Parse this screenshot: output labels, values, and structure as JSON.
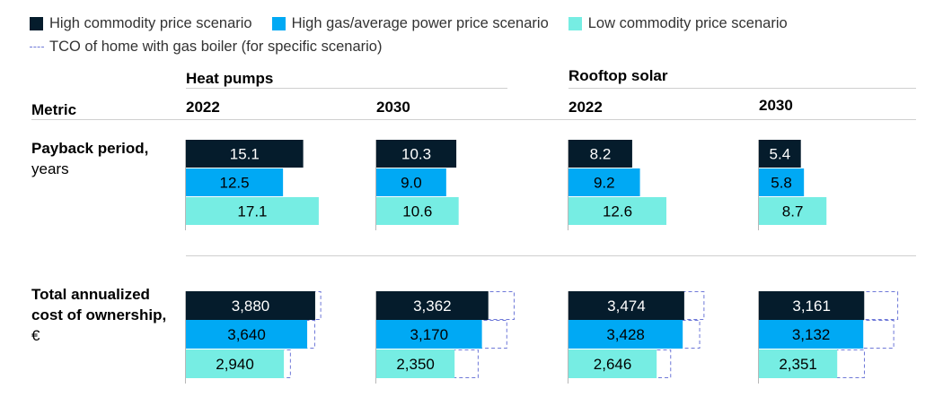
{
  "legend": {
    "high_commodity": "High commodity price scenario",
    "high_gas": "High gas/average power price scenario",
    "low_commodity": "Low commodity price scenario",
    "tco_gas": "TCO of home with gas boiler (for specific scenario)"
  },
  "headers": {
    "metric": "Metric",
    "heat_pumps": "Heat pumps",
    "rooftop_solar": "Rooftop solar",
    "year_2022": "2022",
    "year_2030": "2030"
  },
  "metrics": {
    "payback_title": "Payback period,",
    "payback_unit": "years",
    "tco_title_1": "Total annualized",
    "tco_title_2": "cost of ownership,",
    "tco_unit": "€"
  },
  "colors": {
    "high_commodity": "#051c2c",
    "high_gas": "#00a9f4",
    "low_commodity": "#76ede3",
    "tco_dash": "#6e78d8"
  },
  "chart_data": {
    "type": "bar",
    "groups": [
      "Heat pumps 2022",
      "Heat pumps 2030",
      "Rooftop solar 2022",
      "Rooftop solar 2030"
    ],
    "series_names": [
      "High commodity price scenario",
      "High gas/average power price scenario",
      "Low commodity price scenario"
    ],
    "payback_years": {
      "labels": [
        [
          "15.1",
          "12.5",
          "17.1"
        ],
        [
          "10.3",
          "9.0",
          "10.6"
        ],
        [
          "8.2",
          "9.2",
          "12.6"
        ],
        [
          "5.4",
          "5.8",
          "8.7"
        ]
      ],
      "values": [
        [
          15.1,
          12.5,
          17.1
        ],
        [
          10.3,
          9.0,
          10.6
        ],
        [
          8.2,
          9.2,
          12.6
        ],
        [
          5.4,
          5.8,
          8.7
        ]
      ]
    },
    "tco_eur": {
      "labels": [
        [
          "3,880",
          "3,640",
          "2,940"
        ],
        [
          "3,362",
          "3,170",
          "2,350"
        ],
        [
          "3,474",
          "3,428",
          "2,646"
        ],
        [
          "3,161",
          "3,132",
          "2,351"
        ]
      ],
      "values": [
        [
          3880,
          3640,
          2940
        ],
        [
          3362,
          3170,
          2350
        ],
        [
          3474,
          3428,
          2646
        ],
        [
          3161,
          3132,
          2351
        ]
      ],
      "gas_boiler_tco": [
        [
          4060,
          3880,
          3150
        ],
        [
          4150,
          3930,
          3070
        ],
        [
          4080,
          3950,
          3080
        ],
        [
          4180,
          4060,
          3180
        ]
      ]
    }
  }
}
